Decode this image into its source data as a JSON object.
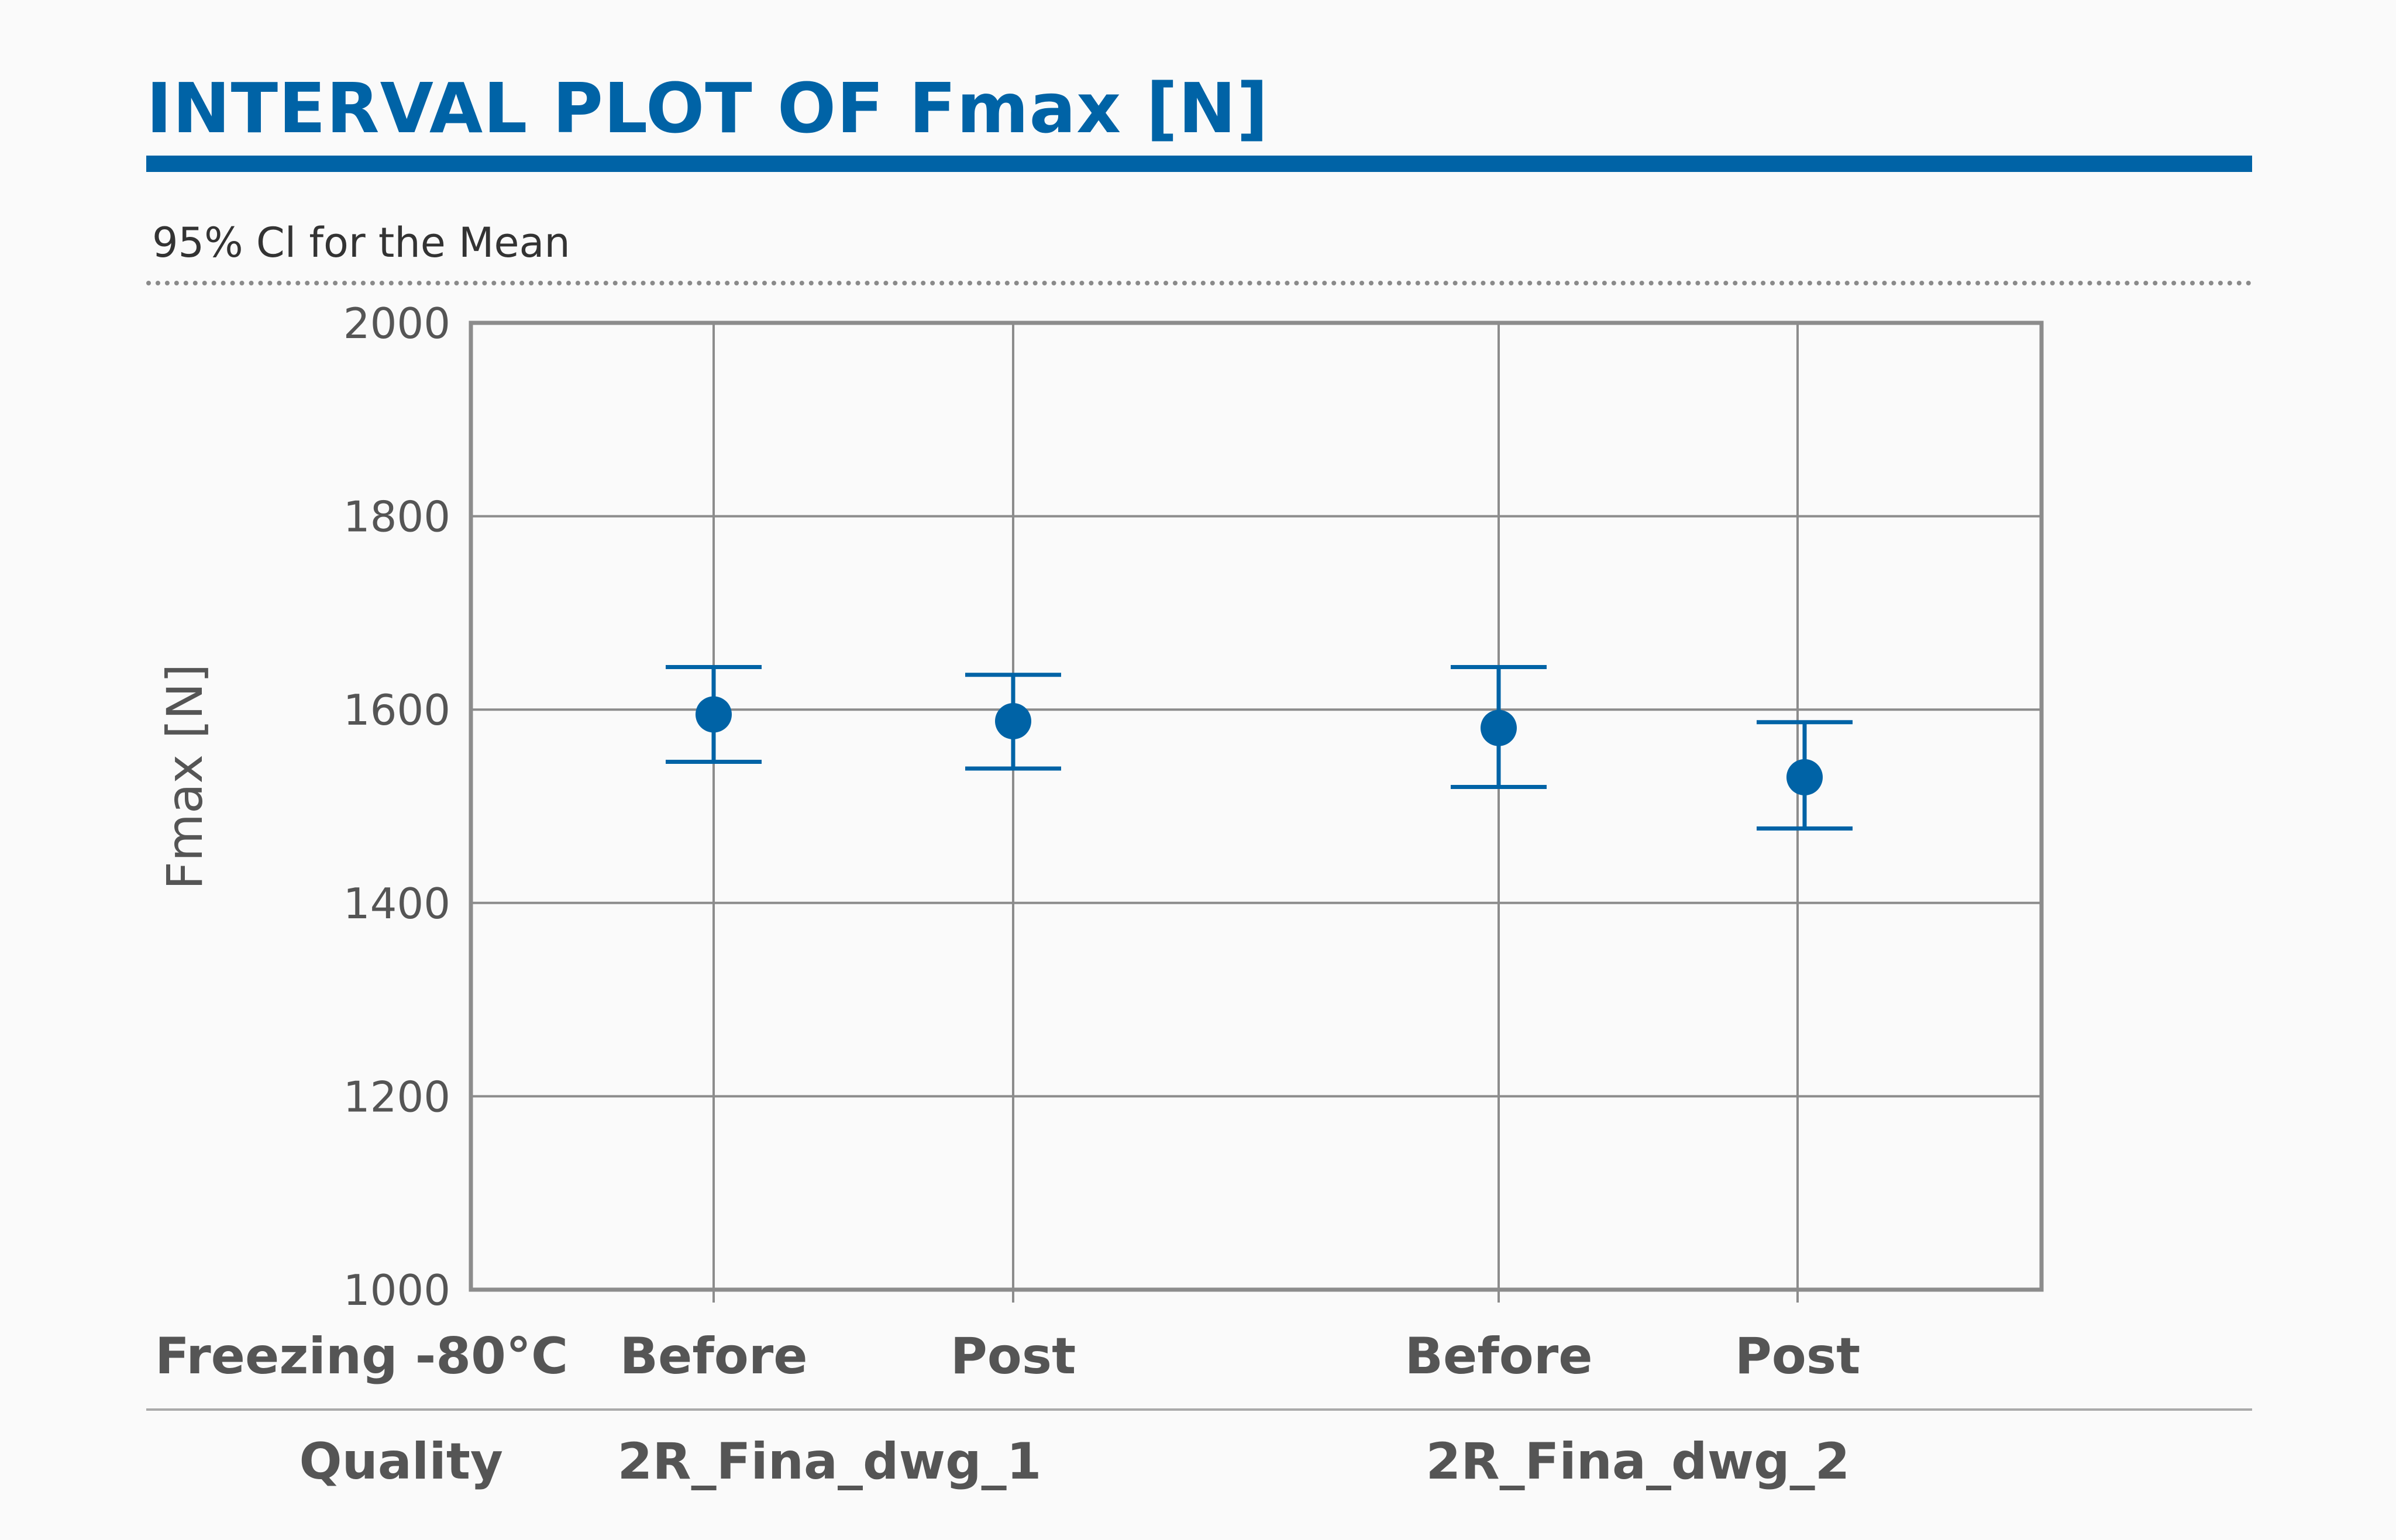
{
  "header": {
    "title": "INTERVAL PLOT OF Fmax [N]",
    "subtitle": "95% Cl for the Mean"
  },
  "colors": {
    "accent": "#0063a6",
    "grid": "#8c8c8c",
    "text": "#555555",
    "background": "#fafafa"
  },
  "chart_data": {
    "type": "interval",
    "title": "INTERVAL PLOT OF Fmax [N]",
    "subtitle": "95% Cl for the Mean",
    "ylabel": "Fmax [N]",
    "ylim": [
      1000,
      2000
    ],
    "yticks": [
      1000,
      1200,
      1400,
      1600,
      1800,
      2000
    ],
    "grid": true,
    "factors": [
      {
        "label": "Freezing -80°C"
      },
      {
        "label": "Quality"
      }
    ],
    "groups": [
      {
        "quality": "2R_Fina_dwg_1",
        "freezing": [
          "Before",
          "Post"
        ]
      },
      {
        "quality": "2R_Fina_dwg_2",
        "freezing": [
          "Before",
          "Post"
        ]
      }
    ],
    "points": [
      {
        "quality": "2R_Fina_dwg_1",
        "freezing": "Before",
        "mean": 1595,
        "lower": 1546,
        "upper": 1644
      },
      {
        "quality": "2R_Fina_dwg_1",
        "freezing": "Post",
        "mean": 1588,
        "lower": 1539,
        "upper": 1636
      },
      {
        "quality": "2R_Fina_dwg_2",
        "freezing": "Before",
        "mean": 1581,
        "lower": 1520,
        "upper": 1644
      },
      {
        "quality": "2R_Fina_dwg_2",
        "freezing": "Post",
        "mean": 1530,
        "lower": 1477,
        "upper": 1587
      }
    ]
  }
}
